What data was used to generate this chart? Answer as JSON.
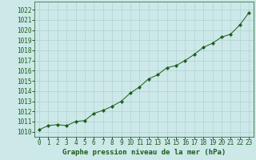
{
  "x": [
    0,
    1,
    2,
    3,
    4,
    5,
    6,
    7,
    8,
    9,
    10,
    11,
    12,
    13,
    14,
    15,
    16,
    17,
    18,
    19,
    20,
    21,
    22,
    23
  ],
  "y": [
    1010.2,
    1010.6,
    1010.7,
    1010.6,
    1011.0,
    1011.1,
    1011.8,
    1012.1,
    1012.5,
    1013.0,
    1013.8,
    1014.4,
    1015.2,
    1015.6,
    1016.3,
    1016.5,
    1017.0,
    1017.6,
    1018.3,
    1018.7,
    1019.3,
    1019.6,
    1020.5,
    1021.7
  ],
  "line_color": "#1a5c1a",
  "marker": "D",
  "marker_size": 2.2,
  "bg_color": "#cce8e8",
  "grid_color": "#aacccc",
  "xlabel": "Graphe pression niveau de la mer (hPa)",
  "xlabel_fontsize": 6.5,
  "xtick_fontsize": 5.5,
  "ytick_fontsize": 5.5,
  "ylim": [
    1009.5,
    1022.8
  ],
  "xlim": [
    -0.5,
    23.5
  ],
  "yticks": [
    1010,
    1011,
    1012,
    1013,
    1014,
    1015,
    1016,
    1017,
    1018,
    1019,
    1020,
    1021,
    1022
  ],
  "xticks": [
    0,
    1,
    2,
    3,
    4,
    5,
    6,
    7,
    8,
    9,
    10,
    11,
    12,
    13,
    14,
    15,
    16,
    17,
    18,
    19,
    20,
    21,
    22,
    23
  ]
}
